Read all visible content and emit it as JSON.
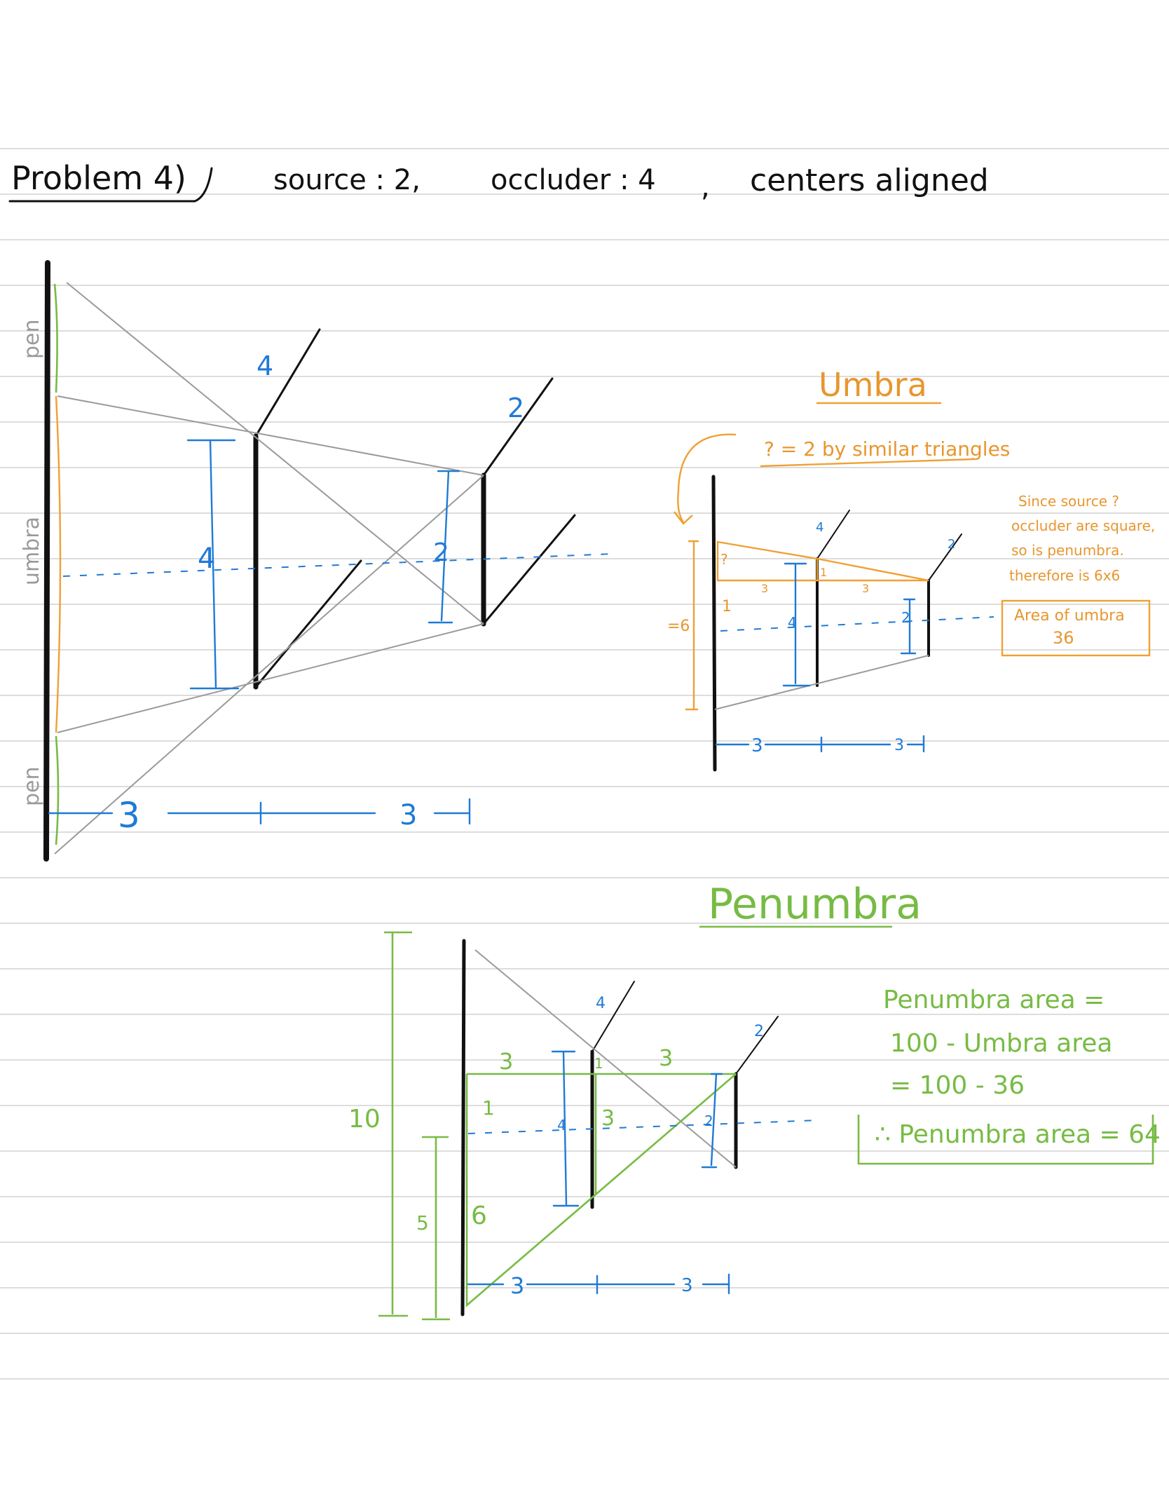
{
  "header": {
    "title": "Problem 4)",
    "source": "source : 2,",
    "occluder": "occluder : 4",
    "comma": ",",
    "centers": "centers aligned"
  },
  "main_diagram": {
    "occluder_size": "4",
    "source_size": "2",
    "occluder_height": "4",
    "source_height": "2",
    "dist_left": "3",
    "dist_right": "3",
    "side_labels": [
      "pen",
      "umbra",
      "pen"
    ]
  },
  "umbra": {
    "title": "Umbra",
    "note": "? = 2 by similar triangles",
    "q": "?",
    "one_a": "1",
    "one_b": "1",
    "three_a": "3",
    "three_b": "3",
    "occluder_size": "4",
    "source_size": "2",
    "occluder_height": "4",
    "source_height": "2",
    "total": "=6",
    "dist_left": "3",
    "dist_right": "3",
    "explanation": [
      "Since source ?",
      "occluder are square,",
      "so is penumbra.",
      "therefore is 6x6"
    ],
    "area_label": "Area of umbra",
    "area_value": "36"
  },
  "penumbra": {
    "title": "Penumbra",
    "size_top": "4",
    "size_right": "2",
    "three_a": "3",
    "three_b": "3",
    "three_c": "3",
    "one_a": "1",
    "one_b": "1",
    "six": "6",
    "five": "5",
    "ten": "10",
    "occluder_height": "4",
    "source_height": "2",
    "dist_left": "3",
    "dist_right": "3",
    "calc": [
      "Penumbra area =",
      "100 - Umbra area",
      "= 100 - 36"
    ],
    "result": "∴ Penumbra area = 64"
  }
}
